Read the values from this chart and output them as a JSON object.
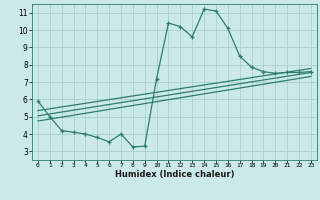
{
  "title": "",
  "xlabel": "Humidex (Indice chaleur)",
  "ylabel": "",
  "bg_color": "#cce9e9",
  "line_color": "#2d7d6e",
  "grid_color": "#aacfcf",
  "xlim": [
    -0.5,
    23.5
  ],
  "ylim": [
    2.5,
    11.5
  ],
  "xticks": [
    0,
    1,
    2,
    3,
    4,
    5,
    6,
    7,
    8,
    9,
    10,
    11,
    12,
    13,
    14,
    15,
    16,
    17,
    18,
    19,
    20,
    21,
    22,
    23
  ],
  "yticks": [
    3,
    4,
    5,
    6,
    7,
    8,
    9,
    10,
    11
  ],
  "main_x": [
    0,
    1,
    2,
    3,
    4,
    5,
    6,
    7,
    8,
    9,
    10,
    11,
    12,
    13,
    14,
    15,
    16,
    17,
    18,
    19,
    20,
    21,
    22,
    23
  ],
  "main_y": [
    5.9,
    5.0,
    4.2,
    4.1,
    4.0,
    3.8,
    3.55,
    4.0,
    3.25,
    3.3,
    7.2,
    10.4,
    10.2,
    9.6,
    11.2,
    11.1,
    10.1,
    8.5,
    7.85,
    7.6,
    7.5,
    7.55,
    7.55,
    7.6
  ],
  "reg_line1_x": [
    0,
    23
  ],
  "reg_line1_y": [
    5.05,
    7.55
  ],
  "reg_line2_x": [
    0,
    23
  ],
  "reg_line2_y": [
    5.35,
    7.78
  ],
  "reg_line3_x": [
    0,
    23
  ],
  "reg_line3_y": [
    4.75,
    7.32
  ]
}
